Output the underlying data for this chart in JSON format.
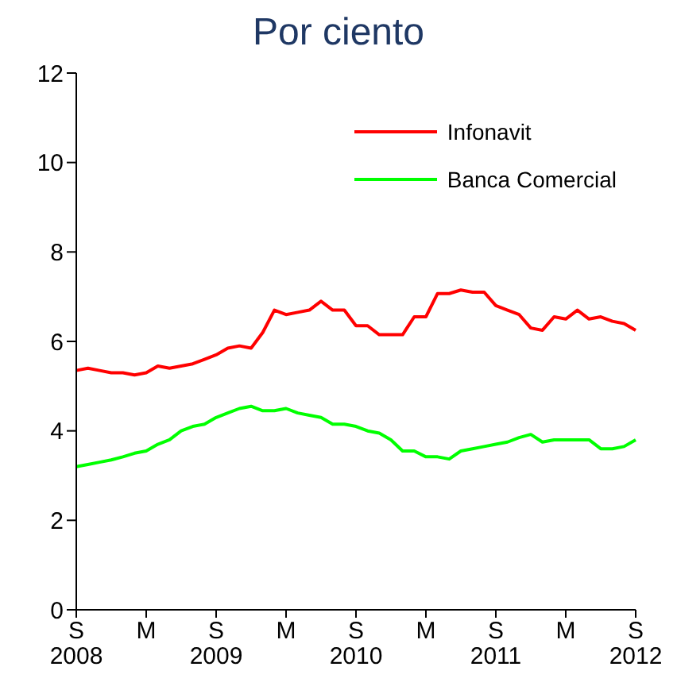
{
  "chart_data": {
    "type": "line",
    "title": "Por ciento",
    "categories": [
      "S\n2008",
      null,
      null,
      null,
      null,
      null,
      "M",
      null,
      null,
      null,
      null,
      null,
      "S\n2009",
      null,
      null,
      null,
      null,
      null,
      "M",
      null,
      null,
      null,
      null,
      null,
      "S\n2010",
      null,
      null,
      null,
      null,
      null,
      "M",
      null,
      null,
      null,
      null,
      null,
      "S\n2011",
      null,
      null,
      null,
      null,
      null,
      "M",
      null,
      null,
      null,
      null,
      null,
      "S\n2012"
    ],
    "series": [
      {
        "name": "Infonavit",
        "color": "#ff0000",
        "values": [
          5.35,
          5.4,
          5.35,
          5.3,
          5.3,
          5.25,
          5.3,
          5.45,
          5.4,
          5.45,
          5.5,
          5.6,
          5.7,
          5.85,
          5.9,
          5.85,
          6.2,
          6.7,
          6.6,
          6.65,
          6.7,
          6.9,
          6.7,
          6.7,
          6.35,
          6.35,
          6.15,
          6.15,
          6.15,
          6.55,
          6.55,
          7.07,
          7.07,
          7.15,
          7.1,
          7.1,
          6.8,
          6.7,
          6.6,
          6.3,
          6.25,
          6.55,
          6.5,
          6.7,
          6.5,
          6.55,
          6.45,
          6.4,
          6.25
        ]
      },
      {
        "name": "Banca Comercial",
        "color": "#00ff00",
        "values": [
          3.2,
          3.25,
          3.3,
          3.35,
          3.42,
          3.5,
          3.55,
          3.7,
          3.8,
          4.0,
          4.1,
          4.15,
          4.3,
          4.4,
          4.5,
          4.55,
          4.45,
          4.45,
          4.5,
          4.4,
          4.35,
          4.3,
          4.15,
          4.15,
          4.1,
          4.0,
          3.95,
          3.8,
          3.55,
          3.55,
          3.42,
          3.42,
          3.37,
          3.55,
          3.6,
          3.65,
          3.7,
          3.75,
          3.85,
          3.92,
          3.75,
          3.8,
          3.8,
          3.8,
          3.8,
          3.6,
          3.6,
          3.65,
          3.8
        ]
      }
    ],
    "ylim": [
      0,
      12
    ],
    "yticks": [
      0,
      2,
      4,
      6,
      8,
      10,
      12
    ],
    "grid": false,
    "legend": "top right",
    "marker": "none",
    "line_style": "solid"
  }
}
